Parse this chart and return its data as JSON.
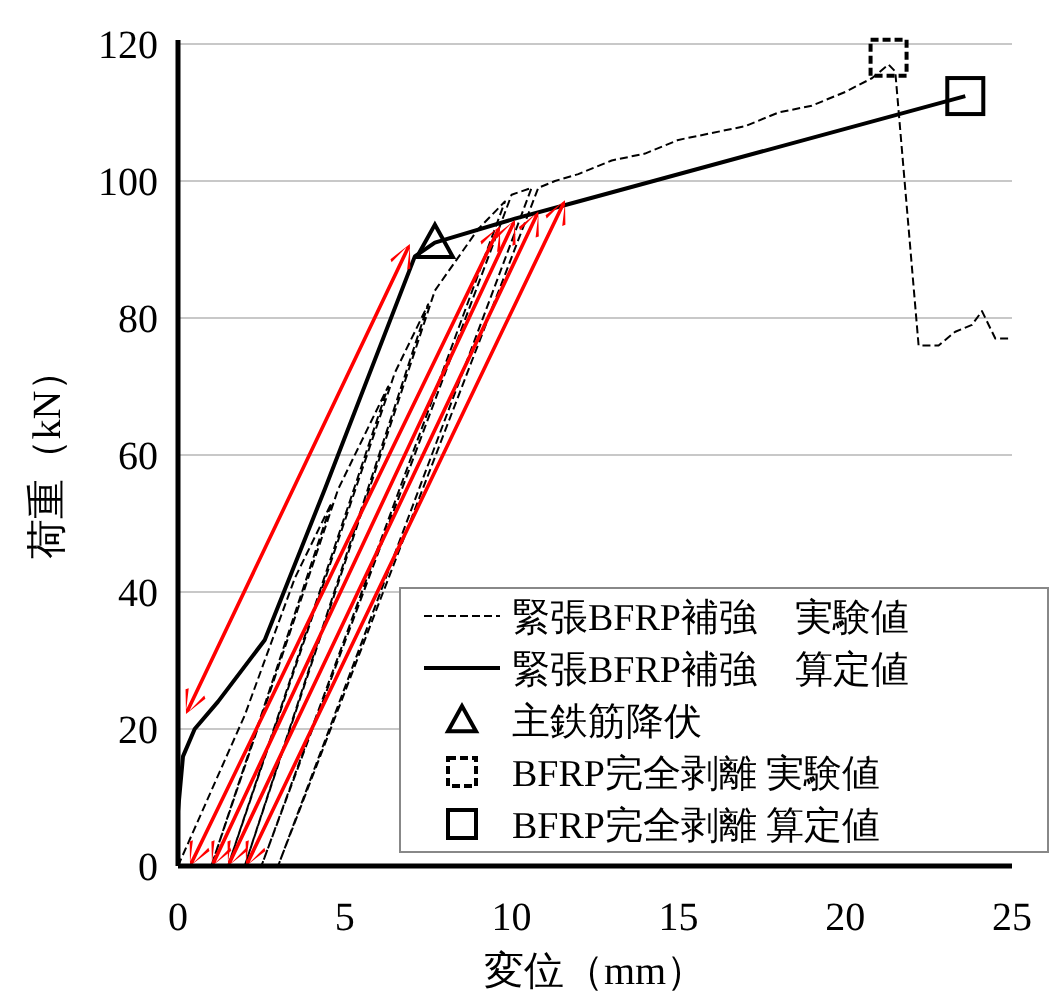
{
  "chart_data": {
    "type": "line",
    "xlabel": "変位（mm）",
    "ylabel": "荷重（kN）",
    "xlim": [
      0,
      25
    ],
    "ylim": [
      0,
      120
    ],
    "xticks": [
      0,
      5,
      10,
      15,
      20,
      25
    ],
    "yticks": [
      0,
      20,
      40,
      60,
      80,
      100,
      120
    ],
    "grid": "y",
    "legend": "bottom right",
    "series": [
      {
        "name": "緊張BFRP補強　実験値",
        "type": "line",
        "line_style": "dashed",
        "color": "#000000",
        "x": [
          0,
          2,
          3.5,
          4.6,
          1.0,
          4.8,
          6.3,
          1.5,
          6.5,
          7.5,
          2.0,
          7.7,
          9.0,
          9.8,
          2.5,
          10.0,
          10.6,
          3.0,
          10.8,
          11.3,
          12,
          13,
          14,
          15,
          16,
          17,
          18,
          19,
          20,
          20.8,
          21.3,
          21.5,
          22.2,
          22.8,
          23.3,
          23.8,
          24.1,
          24.5,
          25
        ],
        "values": [
          0,
          22,
          42,
          53,
          0,
          55,
          70,
          0,
          72,
          82,
          0,
          84,
          93,
          97,
          0,
          98,
          99,
          0,
          99,
          100,
          101,
          103,
          104,
          106,
          107,
          108,
          110,
          111,
          113,
          115,
          117,
          116,
          76,
          76,
          78,
          79,
          81,
          77,
          77
        ]
      },
      {
        "name": "緊張BFRP補強　算定値",
        "type": "line",
        "line_style": "solid",
        "color": "#000000",
        "x": [
          0,
          0,
          0.15,
          0.5,
          1.2,
          2.6,
          4.4,
          7.1,
          7.7,
          10.1,
          12,
          23.6
        ],
        "values": [
          0,
          8,
          16,
          20,
          24,
          33,
          55,
          89,
          91,
          94.5,
          97,
          112.4
        ]
      },
      {
        "name": "主鉄筋降伏",
        "type": "scatter",
        "marker": "triangle",
        "color": "#000000",
        "x": [
          7.7
        ],
        "values": [
          91
        ]
      },
      {
        "name": "BFRP完全剥離 実験値",
        "type": "scatter",
        "marker": "square",
        "line_style": "dashed",
        "color": "#000000",
        "x": [
          21.3
        ],
        "values": [
          118
        ]
      },
      {
        "name": "BFRP完全剥離 算定値",
        "type": "scatter",
        "marker": "square",
        "color": "#000000",
        "x": [
          23.6
        ],
        "values": [
          112.4
        ]
      }
    ]
  }
}
